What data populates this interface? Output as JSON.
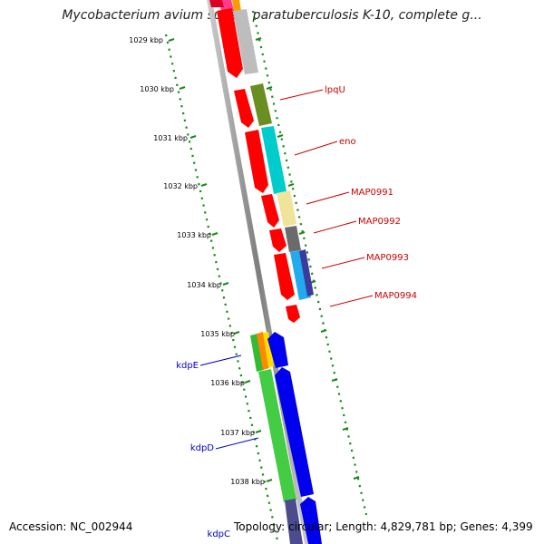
{
  "title": "Mycobacterium avium subsp. paratuberculosis K-10, complete g...",
  "ticks": [
    "1029 kbp",
    "1030 kbp",
    "1031 kbp",
    "1032 kbp",
    "1033 kbp",
    "1034 kbp",
    "1035 kbp",
    "1036 kbp",
    "1037 kbp",
    "1038 kbp"
  ],
  "genes": {
    "forward": [
      "lpqU",
      "eno",
      "MAP0991",
      "MAP0992",
      "MAP0993",
      "MAP0994"
    ],
    "reverse": [
      "kdpE",
      "kdpD",
      "kdpC"
    ]
  },
  "footer": {
    "accession": "Accession: NC_002944",
    "topology": "Topology: circular; Length: 4,829,781 bp; Genes: 4,399"
  },
  "colors": {
    "forward_label": "#cc0000",
    "reverse_label": "#0000cc",
    "tick_dots": "#1a8a1a",
    "backbone": "#8c8c8c"
  }
}
